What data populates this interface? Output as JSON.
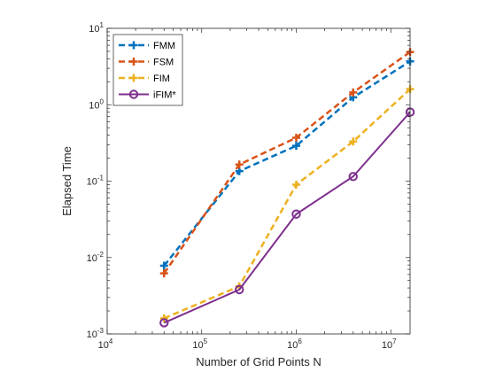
{
  "chart_data": {
    "type": "line",
    "xscale": "log",
    "yscale": "log",
    "xlabel": "Number of Grid Points N",
    "ylabel": "Elapsed Time",
    "xlim": [
      10000,
      16000000
    ],
    "ylim": [
      0.001,
      10
    ],
    "x_ticks": [
      {
        "value": 10000,
        "base": "10",
        "exp": "4"
      },
      {
        "value": 100000,
        "base": "10",
        "exp": "5"
      },
      {
        "value": 1000000,
        "base": "10",
        "exp": "6"
      },
      {
        "value": 10000000,
        "base": "10",
        "exp": "7"
      }
    ],
    "y_ticks": [
      {
        "value": 0.001,
        "base": "10",
        "exp": "-3"
      },
      {
        "value": 0.01,
        "base": "10",
        "exp": "-2"
      },
      {
        "value": 0.1,
        "base": "10",
        "exp": "-1"
      },
      {
        "value": 1,
        "base": "10",
        "exp": "0"
      },
      {
        "value": 10,
        "base": "10",
        "exp": "1"
      }
    ],
    "grid": false,
    "legend_position": "top-left",
    "x": [
      40000,
      250000,
      1000000,
      4000000,
      16000000
    ],
    "series": [
      {
        "name": "FMM",
        "values": [
          0.0078,
          0.135,
          0.29,
          1.25,
          3.7
        ],
        "color": "#0072BD",
        "style": "dashed",
        "marker": "plus"
      },
      {
        "name": "FSM",
        "values": [
          0.0062,
          0.165,
          0.37,
          1.45,
          4.9
        ],
        "color": "#D95319",
        "style": "dashed",
        "marker": "plus"
      },
      {
        "name": "FIM",
        "values": [
          0.0016,
          0.0042,
          0.09,
          0.33,
          1.6
        ],
        "color": "#EDB120",
        "style": "dashed",
        "marker": "plus"
      },
      {
        "name": "iFIM*",
        "values": [
          0.0014,
          0.0038,
          0.037,
          0.115,
          0.8
        ],
        "color": "#7E2F8E",
        "style": "solid",
        "marker": "circle"
      }
    ]
  }
}
